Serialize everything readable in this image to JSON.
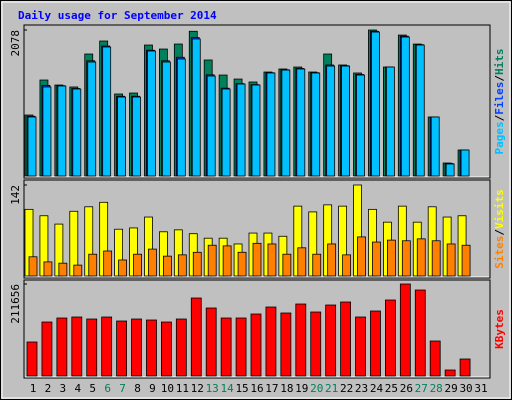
{
  "title": "Daily usage for September 2014",
  "legend_separator": "/",
  "chart_data": [
    {
      "type": "bar",
      "ylim": [
        0,
        2078
      ],
      "yticks": [
        2078
      ],
      "series": [
        {
          "name": "Hits",
          "color": "#00805c",
          "values": [
            868,
            1366,
            1295,
            1267,
            1736,
            1921,
            1167,
            1181,
            1864,
            1807,
            1878,
            2060,
            1651,
            1437,
            1380,
            1338,
            1480,
            1523,
            1551,
            1480,
            1736,
            1580,
            1466,
            2078,
            1551,
            2006,
            1878,
            840,
            185,
            370,
            0
          ]
        },
        {
          "name": "Files",
          "color": "#0040ff",
          "values": [
            850,
            1290,
            1285,
            1245,
            1640,
            1850,
            1135,
            1135,
            1790,
            1640,
            1690,
            1970,
            1440,
            1250,
            1315,
            1300,
            1470,
            1512,
            1530,
            1470,
            1580,
            1570,
            1445,
            2060,
            1551,
            1990,
            1870,
            840,
            178,
            370,
            0
          ]
        },
        {
          "name": "Pages",
          "color": "#00c0ff",
          "values": [
            840,
            1267,
            1281,
            1238,
            1622,
            1836,
            1124,
            1124,
            1779,
            1622,
            1665,
            1950,
            1423,
            1238,
            1309,
            1295,
            1466,
            1508,
            1523,
            1466,
            1565,
            1565,
            1437,
            2049,
            1551,
            1978,
            1864,
            840,
            171,
            370,
            0
          ]
        }
      ]
    },
    {
      "type": "bar",
      "ylim": [
        0,
        142
      ],
      "yticks": [
        142
      ],
      "series": [
        {
          "name": "Visits",
          "color": "#ffff00",
          "values": [
            104,
            94,
            81,
            101,
            108,
            115,
            73,
            75,
            92,
            69,
            72,
            66,
            59,
            59,
            50,
            67,
            67,
            62,
            109,
            100,
            111,
            109,
            142,
            104,
            84,
            109,
            84,
            108,
            92,
            94,
            0
          ]
        },
        {
          "name": "Sites",
          "color": "#ff8000",
          "values": [
            30,
            22,
            20,
            17,
            34,
            39,
            25,
            34,
            42,
            31,
            33,
            37,
            48,
            47,
            37,
            51,
            50,
            34,
            44,
            34,
            50,
            33,
            61,
            53,
            56,
            55,
            58,
            55,
            50,
            48,
            0
          ]
        }
      ]
    },
    {
      "type": "bar",
      "ylim": [
        0,
        211656
      ],
      "yticks": [
        211656
      ],
      "categories": [
        "1",
        "2",
        "3",
        "4",
        "5",
        "6",
        "7",
        "8",
        "9",
        "10",
        "11",
        "12",
        "13",
        "14",
        "15",
        "16",
        "17",
        "18",
        "19",
        "20",
        "21",
        "22",
        "23",
        "24",
        "25",
        "26",
        "27",
        "28",
        "29",
        "30",
        "31"
      ],
      "category_colors": [
        "#000000",
        "#000000",
        "#000000",
        "#000000",
        "#000000",
        "#00805c",
        "#00805c",
        "#000000",
        "#000000",
        "#000000",
        "#000000",
        "#000000",
        "#00805c",
        "#00805c",
        "#000000",
        "#000000",
        "#000000",
        "#000000",
        "#000000",
        "#00805c",
        "#00805c",
        "#000000",
        "#000000",
        "#000000",
        "#000000",
        "#000000",
        "#00805c",
        "#00805c",
        "#000000",
        "#000000",
        "#000000"
      ],
      "series": [
        {
          "name": "KBytes",
          "color": "#ff0000",
          "values": [
            78200,
            124200,
            133400,
            135700,
            131100,
            135700,
            126500,
            131100,
            128800,
            124200,
            131100,
            179400,
            156400,
            133400,
            133400,
            142600,
            158700,
            144900,
            165600,
            147200,
            163300,
            170200,
            135700,
            149500,
            174800,
            211656,
            197800,
            80500,
            13800,
            39100,
            0
          ]
        }
      ]
    }
  ]
}
